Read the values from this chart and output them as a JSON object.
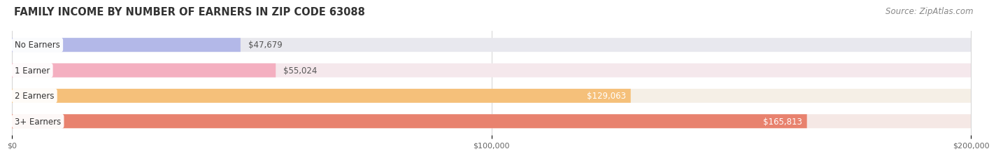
{
  "title": "FAMILY INCOME BY NUMBER OF EARNERS IN ZIP CODE 63088",
  "source": "Source: ZipAtlas.com",
  "categories": [
    "No Earners",
    "1 Earner",
    "2 Earners",
    "3+ Earners"
  ],
  "values": [
    47679,
    55024,
    129063,
    165813
  ],
  "labels": [
    "$47,679",
    "$55,024",
    "$129,063",
    "$165,813"
  ],
  "bar_colors": [
    "#b3b8e8",
    "#f4afc0",
    "#f5c07a",
    "#e8826e"
  ],
  "bar_bg_colors": [
    "#e8e8ee",
    "#f5e8ec",
    "#f5efe6",
    "#f5e8e5"
  ],
  "xlim": [
    0,
    200000
  ],
  "xtick_values": [
    0,
    100000,
    200000
  ],
  "xtick_labels": [
    "$0",
    "$100,000",
    "$200,000"
  ],
  "title_fontsize": 10.5,
  "source_fontsize": 8.5,
  "label_fontsize": 8.5,
  "category_fontsize": 8.5,
  "background_color": "#ffffff",
  "label_inside_threshold": 80000
}
